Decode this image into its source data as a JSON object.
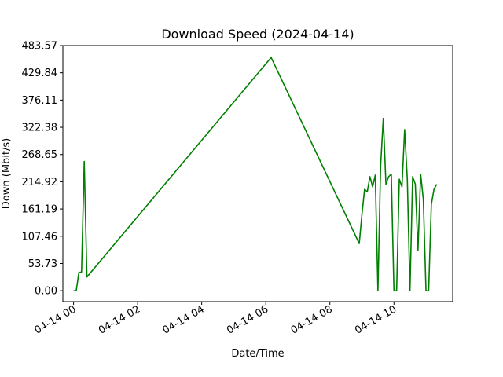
{
  "chart_data": {
    "type": "line",
    "title": "Download Speed (2024-04-14)",
    "xlabel": "Date/Time",
    "ylabel": "Down (Mbit/s)",
    "color": "#008000",
    "x_range": [
      "2024-04-13 23:40",
      "2024-04-14 11:50"
    ],
    "ylim": [
      -21.5,
      483.57
    ],
    "y_ticks": [
      0.0,
      53.73,
      107.46,
      161.19,
      214.92,
      268.65,
      322.38,
      376.11,
      429.84,
      483.57
    ],
    "y_tick_labels": [
      "0.00",
      "53.73",
      "107.46",
      "161.19",
      "214.92",
      "268.65",
      "322.38",
      "376.11",
      "429.84",
      "483.57"
    ],
    "x_ticks": [
      "2024-04-14 00:00",
      "2024-04-14 02:00",
      "2024-04-14 04:00",
      "2024-04-14 06:00",
      "2024-04-14 08:00",
      "2024-04-14 10:00"
    ],
    "x_tick_labels": [
      "04-14 00",
      "04-14 02",
      "04-14 04",
      "04-14 06",
      "04-14 08",
      "04-14 10"
    ],
    "grid": false,
    "legend": "none",
    "series": [
      {
        "x": [
          "2024-04-14 00:00",
          "2024-04-14 00:05",
          "2024-04-14 00:10",
          "2024-04-14 00:15",
          "2024-04-14 00:20",
          "2024-04-14 00:25",
          "2024-04-14 06:10",
          "2024-04-14 08:55",
          "2024-04-14 09:00",
          "2024-04-14 09:05",
          "2024-04-14 09:10",
          "2024-04-14 09:15",
          "2024-04-14 09:20",
          "2024-04-14 09:25",
          "2024-04-14 09:30",
          "2024-04-14 09:35",
          "2024-04-14 09:40",
          "2024-04-14 09:45",
          "2024-04-14 09:50",
          "2024-04-14 09:55",
          "2024-04-14 10:00",
          "2024-04-14 10:05",
          "2024-04-14 10:10",
          "2024-04-14 10:15",
          "2024-04-14 10:20",
          "2024-04-14 10:25",
          "2024-04-14 10:30",
          "2024-04-14 10:35",
          "2024-04-14 10:40",
          "2024-04-14 10:45",
          "2024-04-14 10:50",
          "2024-04-14 10:55",
          "2024-04-14 11:00",
          "2024-04-14 11:05",
          "2024-04-14 11:10",
          "2024-04-14 11:15",
          "2024-04-14 11:20"
        ],
        "y": [
          0,
          0,
          36,
          37,
          255,
          27,
          460,
          93,
          150,
          200,
          195,
          225,
          205,
          228,
          0,
          245,
          340,
          210,
          225,
          230,
          0,
          0,
          220,
          205,
          318,
          220,
          0,
          225,
          210,
          80,
          230,
          180,
          0,
          0,
          170,
          200,
          210
        ]
      }
    ]
  }
}
